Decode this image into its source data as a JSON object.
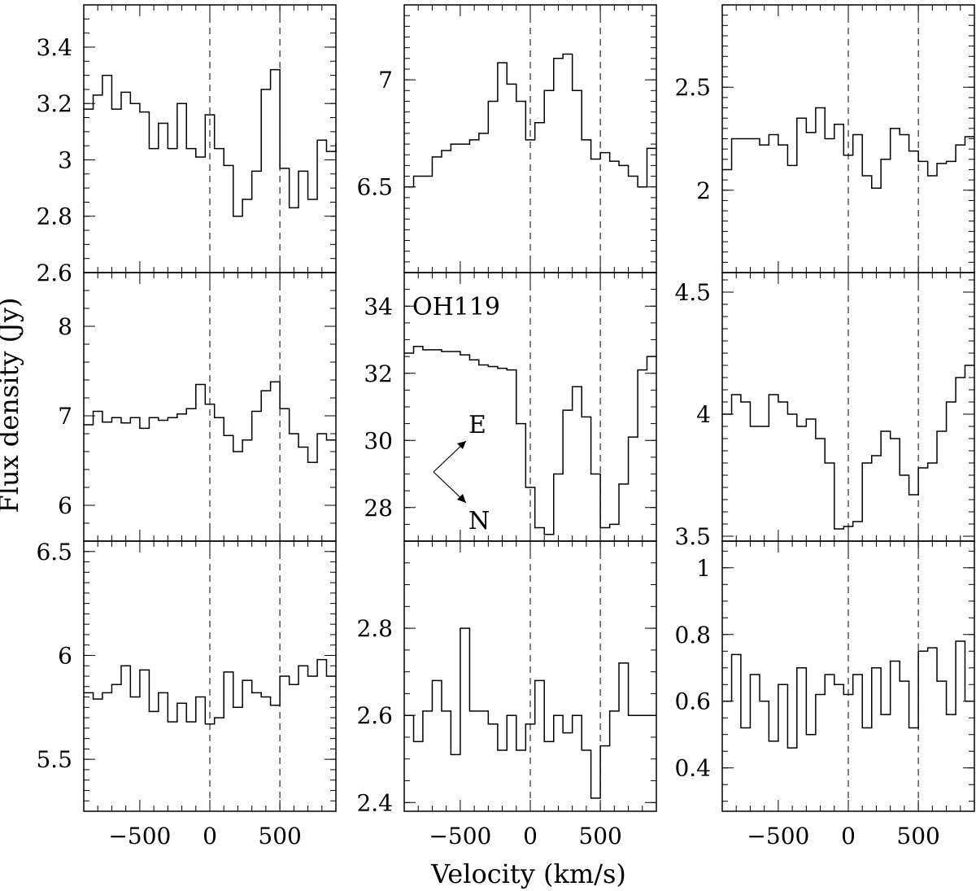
{
  "xlabel": "Velocity (km/s)",
  "ylabel": "Flux density (Jy)",
  "chart_data": [
    {
      "type": "line",
      "step": true,
      "xlim": [
        -900,
        900
      ],
      "ylim": [
        2.6,
        3.55
      ],
      "yticks": [
        "2.6",
        "2.8",
        "3",
        "3.2",
        "3.4"
      ],
      "yminor": 0.05,
      "xticks": [
        "-500",
        "0",
        "500"
      ],
      "show_xticklabels": false,
      "vlines": [
        0,
        500
      ],
      "x": [
        -900,
        -833,
        -767,
        -700,
        -633,
        -567,
        -500,
        -433,
        -367,
        -300,
        -233,
        -167,
        -100,
        -33,
        33,
        100,
        167,
        233,
        300,
        367,
        433,
        500,
        567,
        633,
        700,
        767,
        833,
        900
      ],
      "values": [
        3.18,
        3.23,
        3.3,
        3.18,
        3.24,
        3.2,
        3.17,
        3.04,
        3.13,
        3.04,
        3.2,
        3.04,
        3.01,
        3.16,
        3.04,
        2.98,
        2.8,
        2.86,
        2.96,
        3.25,
        3.32,
        2.97,
        2.83,
        2.96,
        2.86,
        3.07,
        3.03,
        3.06
      ]
    },
    {
      "type": "line",
      "step": true,
      "xlim": [
        -900,
        900
      ],
      "ylim": [
        6.1,
        7.35
      ],
      "yticks": [
        "6.5",
        "7"
      ],
      "yminor": 0.05,
      "xticks": [
        "-500",
        "0",
        "500"
      ],
      "show_xticklabels": false,
      "vlines": [
        0,
        500
      ],
      "x": [
        -900,
        -833,
        -767,
        -700,
        -633,
        -567,
        -500,
        -433,
        -367,
        -300,
        -233,
        -167,
        -100,
        -33,
        33,
        100,
        167,
        233,
        300,
        367,
        433,
        500,
        567,
        633,
        700,
        767,
        833,
        900
      ],
      "values": [
        6.5,
        6.55,
        6.55,
        6.64,
        6.67,
        6.7,
        6.7,
        6.72,
        6.75,
        6.9,
        7.08,
        6.98,
        6.9,
        6.72,
        6.8,
        6.95,
        7.1,
        7.12,
        6.95,
        6.72,
        6.63,
        6.66,
        6.62,
        6.6,
        6.55,
        6.5,
        6.68,
        6.68
      ]
    },
    {
      "type": "line",
      "step": true,
      "xlim": [
        -900,
        900
      ],
      "ylim": [
        1.6,
        2.9
      ],
      "yticks": [
        "2",
        "2.5"
      ],
      "yminor": 0.05,
      "xticks": [
        "-500",
        "0",
        "500"
      ],
      "show_xticklabels": false,
      "vlines": [
        0,
        500
      ],
      "x": [
        -900,
        -833,
        -767,
        -700,
        -633,
        -567,
        -500,
        -433,
        -367,
        -300,
        -233,
        -167,
        -100,
        -33,
        33,
        100,
        167,
        233,
        300,
        367,
        433,
        500,
        567,
        633,
        700,
        767,
        833,
        900
      ],
      "values": [
        2.1,
        2.25,
        2.25,
        2.25,
        2.22,
        2.27,
        2.22,
        2.12,
        2.35,
        2.28,
        2.4,
        2.25,
        2.32,
        2.17,
        2.27,
        2.07,
        2.01,
        2.15,
        2.3,
        2.27,
        2.19,
        2.14,
        2.07,
        2.13,
        2.14,
        2.22,
        2.26,
        2.26
      ]
    },
    {
      "type": "line",
      "step": true,
      "xlim": [
        -900,
        900
      ],
      "ylim": [
        5.6,
        8.6
      ],
      "yticks": [
        "6",
        "7",
        "8"
      ],
      "yminor": 0.2,
      "xticks": [
        "-500",
        "0",
        "500"
      ],
      "show_xticklabels": false,
      "vlines": [
        0,
        500
      ],
      "x": [
        -900,
        -833,
        -767,
        -700,
        -633,
        -567,
        -500,
        -433,
        -367,
        -300,
        -233,
        -167,
        -100,
        -33,
        33,
        100,
        167,
        233,
        300,
        367,
        433,
        500,
        567,
        633,
        700,
        767,
        833,
        900
      ],
      "values": [
        6.9,
        7.05,
        6.93,
        6.98,
        6.92,
        6.98,
        6.86,
        6.98,
        6.95,
        6.98,
        7.02,
        7.08,
        7.35,
        7.13,
        6.98,
        6.78,
        6.6,
        6.73,
        7.05,
        7.28,
        7.38,
        7.08,
        6.8,
        6.65,
        6.48,
        6.8,
        6.73,
        6.73
      ]
    },
    {
      "type": "line",
      "step": true,
      "xlim": [
        -900,
        900
      ],
      "ylim": [
        27,
        35
      ],
      "yticks": [
        "28",
        "30",
        "32",
        "34"
      ],
      "yminor": 0.5,
      "xticks": [
        "-500",
        "0",
        "500"
      ],
      "show_xticklabels": false,
      "vlines": [
        0,
        500
      ],
      "x": [
        -900,
        -833,
        -767,
        -700,
        -633,
        -567,
        -500,
        -433,
        -367,
        -300,
        -233,
        -167,
        -100,
        -33,
        33,
        100,
        167,
        233,
        300,
        367,
        433,
        500,
        567,
        633,
        700,
        767,
        833,
        900
      ],
      "values": [
        32.6,
        32.8,
        32.7,
        32.7,
        32.65,
        32.65,
        32.55,
        32.4,
        32.25,
        32.2,
        32.15,
        32.1,
        30.5,
        28.6,
        27.4,
        27.2,
        29,
        30.9,
        31.6,
        30.7,
        29.0,
        27.4,
        27.5,
        28.7,
        30.1,
        32.1,
        32.5,
        32.5
      ],
      "annotations": {
        "label": "OH119",
        "east": "E",
        "north": "N"
      }
    },
    {
      "type": "line",
      "step": true,
      "xlim": [
        -900,
        900
      ],
      "ylim": [
        3.48,
        4.58
      ],
      "yticks": [
        "3.5",
        "4",
        "4.5"
      ],
      "yminor": 0.05,
      "xticks": [
        "-500",
        "0",
        "500"
      ],
      "show_xticklabels": false,
      "vlines": [
        0,
        500
      ],
      "x": [
        -900,
        -833,
        -767,
        -700,
        -633,
        -567,
        -500,
        -433,
        -367,
        -300,
        -233,
        -167,
        -100,
        -33,
        33,
        100,
        167,
        233,
        300,
        367,
        433,
        500,
        567,
        633,
        700,
        767,
        833,
        900
      ],
      "values": [
        4.0,
        4.08,
        4.05,
        3.95,
        3.95,
        4.08,
        4.05,
        4.0,
        3.95,
        3.98,
        3.9,
        3.8,
        3.53,
        3.54,
        3.56,
        3.8,
        3.83,
        3.93,
        3.9,
        3.75,
        3.67,
        3.78,
        3.8,
        3.93,
        4.05,
        4.15,
        4.2,
        4.2
      ]
    },
    {
      "type": "line",
      "step": true,
      "xlim": [
        -900,
        900
      ],
      "ylim": [
        5.25,
        6.55
      ],
      "yticks": [
        "5.5",
        "6",
        "6.5"
      ],
      "yminor": 0.05,
      "xticks": [
        "-500",
        "0",
        "500"
      ],
      "show_xticklabels": true,
      "vlines": [
        0,
        500
      ],
      "x": [
        -900,
        -833,
        -767,
        -700,
        -633,
        -567,
        -500,
        -433,
        -367,
        -300,
        -233,
        -167,
        -100,
        -33,
        33,
        100,
        167,
        233,
        300,
        367,
        433,
        500,
        567,
        633,
        700,
        767,
        833,
        900
      ],
      "values": [
        5.82,
        5.79,
        5.82,
        5.86,
        5.95,
        5.8,
        5.93,
        5.73,
        5.82,
        5.68,
        5.77,
        5.68,
        5.8,
        5.67,
        5.7,
        5.92,
        5.75,
        5.88,
        5.82,
        5.8,
        5.76,
        5.9,
        5.86,
        5.95,
        5.9,
        5.98,
        5.9,
        5.9
      ]
    },
    {
      "type": "line",
      "step": true,
      "xlim": [
        -900,
        900
      ],
      "ylim": [
        2.38,
        3.0
      ],
      "yticks": [
        "2.4",
        "2.6",
        "2.8"
      ],
      "yminor": 0.05,
      "xticks": [
        "-500",
        "0",
        "500"
      ],
      "show_xticklabels": true,
      "vlines": [
        0,
        500
      ],
      "x": [
        -900,
        -833,
        -767,
        -700,
        -633,
        -567,
        -500,
        -433,
        -367,
        -300,
        -233,
        -167,
        -100,
        -33,
        33,
        100,
        167,
        233,
        300,
        367,
        433,
        500,
        567,
        633,
        700,
        767,
        833,
        900
      ],
      "values": [
        2.6,
        2.54,
        2.61,
        2.68,
        2.61,
        2.51,
        2.8,
        2.61,
        2.61,
        2.58,
        2.52,
        2.6,
        2.52,
        2.58,
        2.68,
        2.54,
        2.6,
        2.56,
        2.6,
        2.52,
        2.41,
        2.53,
        2.61,
        2.72,
        2.6,
        2.6,
        2.6,
        2.6
      ]
    },
    {
      "type": "line",
      "step": true,
      "xlim": [
        -900,
        900
      ],
      "ylim": [
        0.27,
        1.08
      ],
      "yticks": [
        "0.4",
        "0.6",
        "0.8",
        "1"
      ],
      "yminor": 0.05,
      "xticks": [
        "-500",
        "0",
        "500"
      ],
      "show_xticklabels": true,
      "vlines": [
        0,
        500
      ],
      "x": [
        -900,
        -833,
        -767,
        -700,
        -633,
        -567,
        -500,
        -433,
        -367,
        -300,
        -233,
        -167,
        -100,
        -33,
        33,
        100,
        167,
        233,
        300,
        367,
        433,
        500,
        567,
        633,
        700,
        767,
        833,
        900
      ],
      "values": [
        0.6,
        0.74,
        0.52,
        0.68,
        0.6,
        0.48,
        0.65,
        0.46,
        0.7,
        0.5,
        0.62,
        0.68,
        0.65,
        0.62,
        0.68,
        0.52,
        0.7,
        0.56,
        0.72,
        0.66,
        0.52,
        0.75,
        0.76,
        0.66,
        0.56,
        0.78,
        0.6,
        0.6
      ]
    }
  ]
}
